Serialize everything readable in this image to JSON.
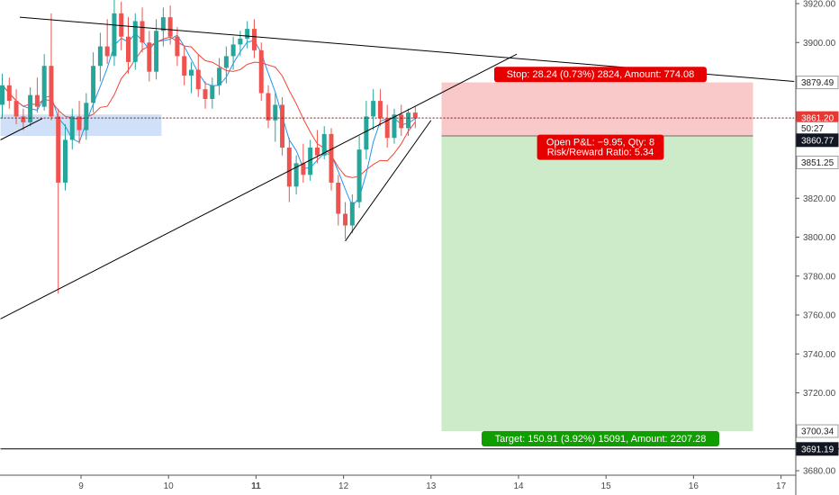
{
  "chart_data": {
    "type": "candlestick",
    "x_tick_labels": [
      "9",
      "10",
      "11",
      "12",
      "13",
      "14",
      "15",
      "16",
      "17"
    ],
    "x_tick_days": [
      9,
      10,
      11,
      12,
      13,
      14,
      15,
      16,
      17
    ],
    "x_bold_labels": [
      "11"
    ],
    "y_tick_values": [
      3680,
      3700,
      3720,
      3740,
      3760,
      3780,
      3800,
      3820,
      3840,
      3860,
      3880,
      3900,
      3920
    ],
    "y_tick_labels": [
      "3680.00",
      "3700.00",
      "3720.00",
      "3740.00",
      "3760.00",
      "3780.00",
      "3800.00",
      "3820.00",
      "3840.00",
      "3860.00",
      "3880.00",
      "3900.00",
      "3920.00"
    ],
    "x_range_days": [
      8.08,
      17.15
    ],
    "y_range": [
      3678.5,
      3923
    ],
    "colors": {
      "up": "#26a69a",
      "down": "#ef5350",
      "ma_fast": "#2196f3",
      "ma_slow": "#f44336",
      "stop_zone": "#f9c8c8",
      "target_zone": "#cdebc8",
      "demand_zone": "#cfe0f8",
      "trend_line": "#000000",
      "stop_tag": "#e60000",
      "target_tag": "#0f9d00",
      "price_tag_dark": "#131722",
      "price_tag_red": "#e53935"
    },
    "candles": [
      {
        "t": 8.1,
        "o": 3868,
        "h": 3884,
        "l": 3861,
        "c": 3878
      },
      {
        "t": 8.18,
        "o": 3878,
        "h": 3882,
        "l": 3866,
        "c": 3870
      },
      {
        "t": 8.26,
        "o": 3870,
        "h": 3876,
        "l": 3858,
        "c": 3862
      },
      {
        "t": 8.34,
        "o": 3862,
        "h": 3866,
        "l": 3855,
        "c": 3859
      },
      {
        "t": 8.42,
        "o": 3859,
        "h": 3877,
        "l": 3857,
        "c": 3873
      },
      {
        "t": 8.5,
        "o": 3873,
        "h": 3882,
        "l": 3864,
        "c": 3867
      },
      {
        "t": 8.58,
        "o": 3867,
        "h": 3894,
        "l": 3865,
        "c": 3888
      },
      {
        "t": 8.66,
        "o": 3888,
        "h": 3915,
        "l": 3860,
        "c": 3862
      },
      {
        "t": 8.74,
        "o": 3862,
        "h": 3866,
        "l": 3771,
        "c": 3828
      },
      {
        "t": 8.82,
        "o": 3828,
        "h": 3858,
        "l": 3824,
        "c": 3850
      },
      {
        "t": 8.9,
        "o": 3850,
        "h": 3866,
        "l": 3845,
        "c": 3862
      },
      {
        "t": 8.98,
        "o": 3862,
        "h": 3870,
        "l": 3848,
        "c": 3855
      },
      {
        "t": 9.06,
        "o": 3855,
        "h": 3874,
        "l": 3850,
        "c": 3869
      },
      {
        "t": 9.14,
        "o": 3869,
        "h": 3895,
        "l": 3864,
        "c": 3888
      },
      {
        "t": 9.22,
        "o": 3888,
        "h": 3905,
        "l": 3880,
        "c": 3898
      },
      {
        "t": 9.3,
        "o": 3898,
        "h": 3912,
        "l": 3889,
        "c": 3893
      },
      {
        "t": 9.38,
        "o": 3893,
        "h": 3922,
        "l": 3888,
        "c": 3915
      },
      {
        "t": 9.46,
        "o": 3915,
        "h": 3921,
        "l": 3896,
        "c": 3903
      },
      {
        "t": 9.54,
        "o": 3903,
        "h": 3913,
        "l": 3884,
        "c": 3890
      },
      {
        "t": 9.62,
        "o": 3890,
        "h": 3915,
        "l": 3886,
        "c": 3911
      },
      {
        "t": 9.7,
        "o": 3911,
        "h": 3918,
        "l": 3895,
        "c": 3900
      },
      {
        "t": 9.78,
        "o": 3900,
        "h": 3906,
        "l": 3880,
        "c": 3885
      },
      {
        "t": 9.86,
        "o": 3885,
        "h": 3912,
        "l": 3881,
        "c": 3906
      },
      {
        "t": 9.94,
        "o": 3906,
        "h": 3918,
        "l": 3898,
        "c": 3913
      },
      {
        "t": 10.02,
        "o": 3913,
        "h": 3919,
        "l": 3899,
        "c": 3903
      },
      {
        "t": 10.1,
        "o": 3903,
        "h": 3908,
        "l": 3888,
        "c": 3893
      },
      {
        "t": 10.18,
        "o": 3893,
        "h": 3898,
        "l": 3878,
        "c": 3883
      },
      {
        "t": 10.26,
        "o": 3883,
        "h": 3890,
        "l": 3874,
        "c": 3886
      },
      {
        "t": 10.34,
        "o": 3886,
        "h": 3894,
        "l": 3872,
        "c": 3876
      },
      {
        "t": 10.42,
        "o": 3876,
        "h": 3880,
        "l": 3866,
        "c": 3871
      },
      {
        "t": 10.5,
        "o": 3871,
        "h": 3882,
        "l": 3866,
        "c": 3878
      },
      {
        "t": 10.58,
        "o": 3878,
        "h": 3892,
        "l": 3873,
        "c": 3887
      },
      {
        "t": 10.66,
        "o": 3887,
        "h": 3898,
        "l": 3879,
        "c": 3893
      },
      {
        "t": 10.74,
        "o": 3893,
        "h": 3903,
        "l": 3886,
        "c": 3899
      },
      {
        "t": 10.82,
        "o": 3899,
        "h": 3906,
        "l": 3893,
        "c": 3902
      },
      {
        "t": 10.9,
        "o": 3902,
        "h": 3911,
        "l": 3897,
        "c": 3907
      },
      {
        "t": 10.98,
        "o": 3907,
        "h": 3912,
        "l": 3892,
        "c": 3896
      },
      {
        "t": 11.06,
        "o": 3896,
        "h": 3900,
        "l": 3870,
        "c": 3874
      },
      {
        "t": 11.14,
        "o": 3874,
        "h": 3878,
        "l": 3856,
        "c": 3860
      },
      {
        "t": 11.22,
        "o": 3860,
        "h": 3874,
        "l": 3849,
        "c": 3868
      },
      {
        "t": 11.3,
        "o": 3868,
        "h": 3872,
        "l": 3842,
        "c": 3846
      },
      {
        "t": 11.38,
        "o": 3846,
        "h": 3851,
        "l": 3818,
        "c": 3826
      },
      {
        "t": 11.46,
        "o": 3826,
        "h": 3842,
        "l": 3822,
        "c": 3838
      },
      {
        "t": 11.54,
        "o": 3838,
        "h": 3848,
        "l": 3828,
        "c": 3832
      },
      {
        "t": 11.62,
        "o": 3832,
        "h": 3850,
        "l": 3829,
        "c": 3846
      },
      {
        "t": 11.7,
        "o": 3846,
        "h": 3855,
        "l": 3838,
        "c": 3842
      },
      {
        "t": 11.78,
        "o": 3842,
        "h": 3857,
        "l": 3840,
        "c": 3853
      },
      {
        "t": 11.86,
        "o": 3853,
        "h": 3856,
        "l": 3824,
        "c": 3828
      },
      {
        "t": 11.94,
        "o": 3828,
        "h": 3832,
        "l": 3806,
        "c": 3812
      },
      {
        "t": 12.02,
        "o": 3812,
        "h": 3818,
        "l": 3799,
        "c": 3806
      },
      {
        "t": 12.1,
        "o": 3806,
        "h": 3822,
        "l": 3802,
        "c": 3818
      },
      {
        "t": 12.18,
        "o": 3818,
        "h": 3852,
        "l": 3815,
        "c": 3845
      },
      {
        "t": 12.26,
        "o": 3845,
        "h": 3870,
        "l": 3840,
        "c": 3862
      },
      {
        "t": 12.34,
        "o": 3862,
        "h": 3876,
        "l": 3855,
        "c": 3870
      },
      {
        "t": 12.42,
        "o": 3870,
        "h": 3876,
        "l": 3857,
        "c": 3861
      },
      {
        "t": 12.5,
        "o": 3861,
        "h": 3868,
        "l": 3846,
        "c": 3851
      },
      {
        "t": 12.58,
        "o": 3851,
        "h": 3866,
        "l": 3848,
        "c": 3863
      },
      {
        "t": 12.66,
        "o": 3863,
        "h": 3868,
        "l": 3852,
        "c": 3856
      },
      {
        "t": 12.74,
        "o": 3856,
        "h": 3866,
        "l": 3852,
        "c": 3864
      },
      {
        "t": 12.82,
        "o": 3864,
        "h": 3867,
        "l": 3856,
        "c": 3861
      }
    ],
    "trend_lines": [
      {
        "name": "upper-descending-line",
        "from": [
          8.3,
          3913
        ],
        "to": [
          17.15,
          3880
        ]
      },
      {
        "name": "rising-support-line",
        "from": [
          8.08,
          3758
        ],
        "to": [
          13.98,
          3894
        ]
      },
      {
        "name": "lower-support-line",
        "from": [
          8.08,
          3850
        ],
        "to": [
          8.56,
          3861
        ]
      },
      {
        "name": "wedge-lower-line",
        "from": [
          12.02,
          3798
        ],
        "to": [
          13.0,
          3860
        ]
      },
      {
        "name": "entry-line",
        "from": [
          8.08,
          3861.2
        ],
        "to": [
          17.15,
          3861.2
        ]
      },
      {
        "name": "support-line-3691",
        "from": [
          8.08,
          3691.19
        ],
        "to": [
          17.15,
          3691.19
        ]
      }
    ],
    "zones": [
      {
        "name": "demand-zone",
        "x": [
          8.08,
          9.92
        ],
        "y": [
          3852,
          3863
        ]
      },
      {
        "name": "stop-zone",
        "x": [
          13.12,
          16.68
        ],
        "y": [
          3852,
          3879.49
        ]
      },
      {
        "name": "target-zone",
        "x": [
          13.12,
          16.68
        ],
        "y": [
          3700.34,
          3852
        ]
      }
    ],
    "annotations": {
      "stop": "Stop: 28.24 (0.73%) 2824, Amount: 774.08",
      "pnl": "Open P&L: −9.95, Qty: 8",
      "risk_reward": "Risk/Reward Ratio: 5.34",
      "target": "Target: 150.91 (3.92%) 15091, Amount: 2207.28"
    },
    "price_tags": [
      {
        "name": "tag-3879",
        "label": "3879.49",
        "value": 3879.49,
        "style": "plain"
      },
      {
        "name": "tag-3861",
        "label": "3861.20",
        "value": 3861.2,
        "style": "red"
      },
      {
        "name": "tag-countdown",
        "label": "50:27",
        "value": 3855.9,
        "style": "plain"
      },
      {
        "name": "tag-3860",
        "label": "3860.77",
        "value": 3849.8,
        "style": "dark"
      },
      {
        "name": "tag-3851",
        "label": "3851.25",
        "value": 3838.4,
        "style": "plain"
      },
      {
        "name": "tag-3700",
        "label": "3700.34",
        "value": 3700.34,
        "style": "plain"
      },
      {
        "name": "tag-3691",
        "label": "3691.19",
        "value": 3691.19,
        "style": "dark"
      }
    ]
  }
}
